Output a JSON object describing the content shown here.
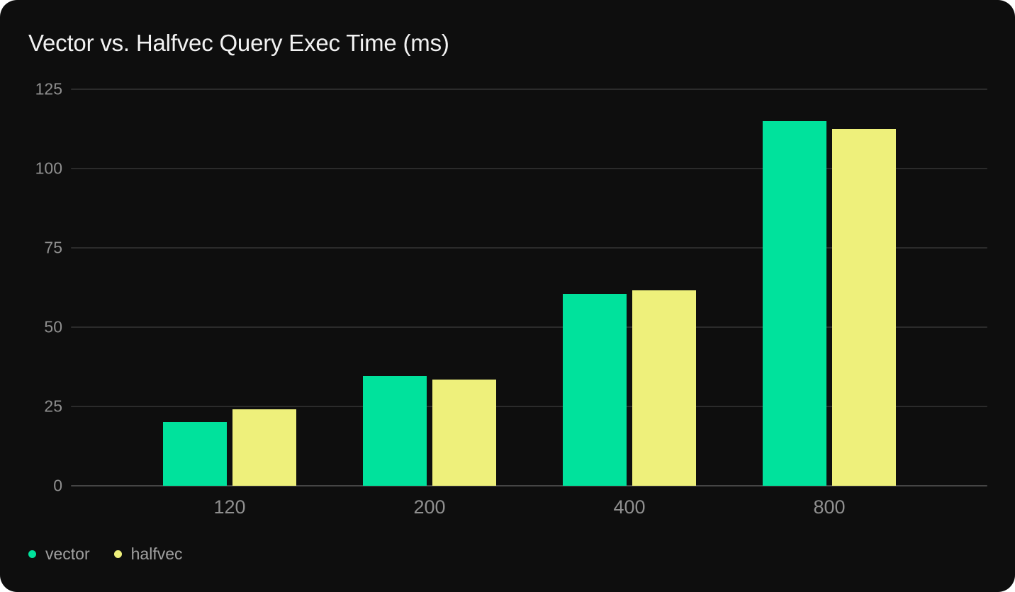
{
  "chart_data": {
    "type": "bar",
    "title": "Vector vs. Halfvec Query Exec Time (ms)",
    "categories": [
      "120",
      "200",
      "400",
      "800"
    ],
    "series": [
      {
        "name": "vector",
        "color": "#00e29c",
        "values": [
          20,
          34.5,
          60.5,
          115
        ]
      },
      {
        "name": "halfvec",
        "color": "#eef07b",
        "values": [
          24,
          33.5,
          61.5,
          112.5
        ]
      }
    ],
    "xlabel": "",
    "ylabel": "",
    "ylim": [
      0,
      125
    ],
    "yticks": [
      0,
      25,
      50,
      75,
      100,
      125
    ],
    "grid": true,
    "legend_position": "bottom-left"
  },
  "theme": {
    "page_background": "#ffffff",
    "card_background": "#0e0e0e",
    "title_color": "#f2f2f2",
    "axis_label_color": "#8f8f8f",
    "legend_text_color": "#a0a0a0",
    "gridline_color": "#2b2b2b",
    "axis_line_color": "#454545"
  }
}
